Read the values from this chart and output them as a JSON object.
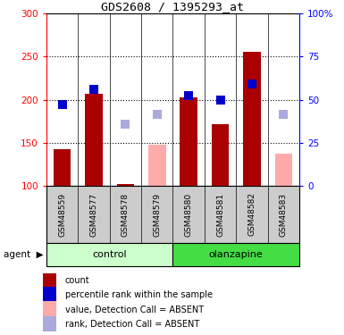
{
  "title": "GDS2608 / 1395293_at",
  "samples": [
    "GSM48559",
    "GSM48577",
    "GSM48578",
    "GSM48579",
    "GSM48580",
    "GSM48581",
    "GSM48582",
    "GSM48583"
  ],
  "count_values": [
    143,
    207,
    102,
    null,
    203,
    172,
    255,
    null
  ],
  "count_absent": [
    null,
    null,
    null,
    148,
    null,
    null,
    null,
    137
  ],
  "rank_values": [
    194,
    212,
    null,
    null,
    205,
    200,
    218,
    null
  ],
  "rank_absent": [
    null,
    null,
    172,
    183,
    null,
    null,
    null,
    183
  ],
  "ylim_left": [
    100,
    300
  ],
  "ylim_right": [
    0,
    100
  ],
  "yticks_left": [
    100,
    150,
    200,
    250,
    300
  ],
  "yticks_right": [
    0,
    25,
    50,
    75,
    100
  ],
  "ytick_right_labels": [
    "0",
    "25",
    "50",
    "75",
    "100%"
  ],
  "bar_color_present": "#aa0000",
  "bar_color_absent": "#ffaaaa",
  "sq_color_present": "#0000cc",
  "sq_color_absent": "#aaaadd",
  "control_bg_light": "#ccffcc",
  "control_bg_dark": "#44dd44",
  "sample_bg": "#cccccc",
  "bar_width": 0.55,
  "sq_size": 45,
  "legend": [
    {
      "label": "count",
      "color": "#aa0000"
    },
    {
      "label": "percentile rank within the sample",
      "color": "#0000cc"
    },
    {
      "label": "value, Detection Call = ABSENT",
      "color": "#ffaaaa"
    },
    {
      "label": "rank, Detection Call = ABSENT",
      "color": "#aaaadd"
    }
  ]
}
